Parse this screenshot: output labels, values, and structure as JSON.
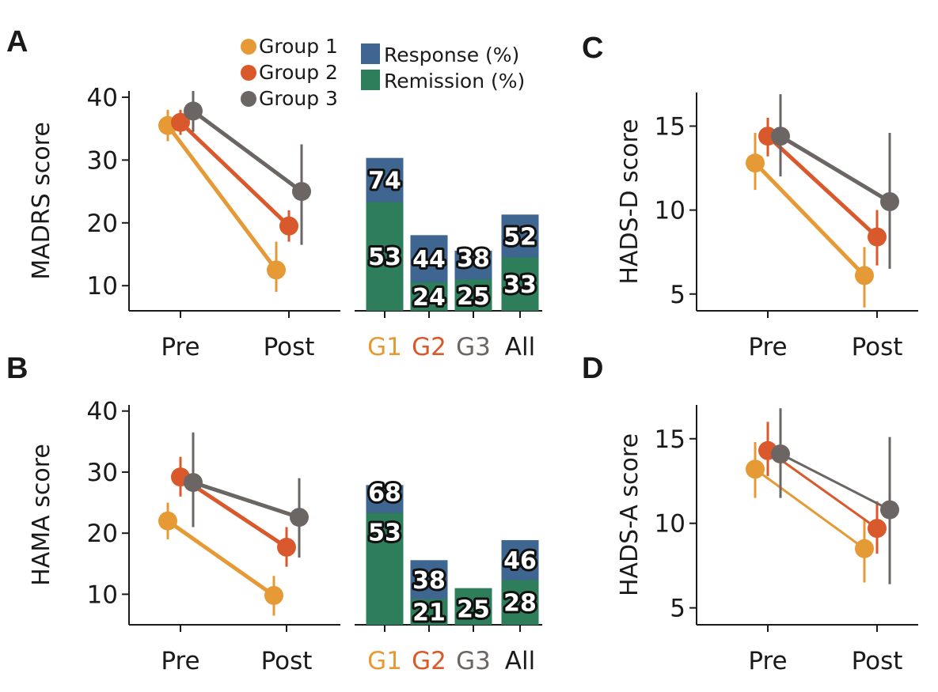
{
  "colors": {
    "g1": "#e69a35",
    "g2": "#d9592c",
    "g3": "#6b6563",
    "response": "#3e6690",
    "remission": "#2e7d5b",
    "axis": "#1a1a1a"
  },
  "legend": {
    "groups": [
      "Group 1",
      "Group 2",
      "Group 3"
    ],
    "bars": [
      "Response (%)",
      "Remission (%)"
    ]
  },
  "chart_data": [
    {
      "id": "A",
      "letter": "A",
      "type": "line",
      "ylabel": "MADRS score",
      "ylim": [
        6,
        41
      ],
      "yticks": [
        10,
        20,
        30,
        40
      ],
      "categories": [
        "Pre",
        "Post"
      ],
      "series": [
        {
          "name": "Group 1",
          "key": "g1",
          "values": [
            35.5,
            12.5
          ],
          "err": [
            [
              33,
              38
            ],
            [
              9,
              17
            ]
          ]
        },
        {
          "name": "Group 2",
          "key": "g2",
          "values": [
            36,
            19.5
          ],
          "err": [
            [
              34,
              38
            ],
            [
              17,
              22
            ]
          ]
        },
        {
          "name": "Group 3",
          "key": "g3",
          "values": [
            37.8,
            25
          ],
          "err": [
            [
              34.5,
              41
            ],
            [
              16.5,
              32.5
            ]
          ]
        }
      ],
      "bars": {
        "categories": [
          "G1",
          "G2",
          "G3",
          "All"
        ],
        "response": [
          74,
          44,
          38,
          52
        ],
        "remission": [
          53,
          24,
          25,
          33
        ]
      }
    },
    {
      "id": "B",
      "letter": "B",
      "type": "line",
      "ylabel": "HAMA score",
      "ylim": [
        5,
        41
      ],
      "yticks": [
        10,
        20,
        30,
        40
      ],
      "categories": [
        "Pre",
        "Post"
      ],
      "series": [
        {
          "name": "Group 1",
          "key": "g1",
          "values": [
            22,
            9.8
          ],
          "err": [
            [
              19,
              25
            ],
            [
              6.5,
              13
            ]
          ]
        },
        {
          "name": "Group 2",
          "key": "g2",
          "values": [
            29.2,
            17.7
          ],
          "err": [
            [
              26,
              32.5
            ],
            [
              14.5,
              21
            ]
          ]
        },
        {
          "name": "Group 3",
          "key": "g3",
          "values": [
            28.3,
            22.6
          ],
          "err": [
            [
              21,
              36.5
            ],
            [
              16,
              29
            ]
          ]
        }
      ],
      "bars": {
        "categories": [
          "G1",
          "G2",
          "G3",
          "All"
        ],
        "response": [
          68,
          38,
          25,
          46
        ],
        "remission": [
          53,
          21,
          25,
          28
        ]
      }
    },
    {
      "id": "C",
      "letter": "C",
      "type": "line",
      "ylabel": "HADS-D score",
      "ylim": [
        4,
        17
      ],
      "yticks": [
        5,
        10,
        15
      ],
      "categories": [
        "Pre",
        "Post"
      ],
      "series": [
        {
          "name": "Group 1",
          "key": "g1",
          "values": [
            12.8,
            6.1
          ],
          "err": [
            [
              11.2,
              14.6
            ],
            [
              4.2,
              7.8
            ]
          ]
        },
        {
          "name": "Group 2",
          "key": "g2",
          "values": [
            14.4,
            8.4
          ],
          "err": [
            [
              13.2,
              15.5
            ],
            [
              6.7,
              10
            ]
          ]
        },
        {
          "name": "Group 3",
          "key": "g3",
          "values": [
            14.4,
            10.5
          ],
          "err": [
            [
              12,
              16.9
            ],
            [
              6.5,
              14.6
            ]
          ]
        }
      ]
    },
    {
      "id": "D",
      "letter": "D",
      "type": "line",
      "ylabel": "HADS-A score",
      "ylim": [
        4,
        17
      ],
      "yticks": [
        5,
        10,
        15
      ],
      "categories": [
        "Pre",
        "Post"
      ],
      "series": [
        {
          "name": "Group 1",
          "key": "g1",
          "values": [
            13.2,
            8.5
          ],
          "err": [
            [
              11.5,
              14.8
            ],
            [
              6.5,
              10.3
            ]
          ]
        },
        {
          "name": "Group 2",
          "key": "g2",
          "values": [
            14.3,
            9.7
          ],
          "err": [
            [
              12.8,
              16
            ],
            [
              8.2,
              11.3
            ]
          ]
        },
        {
          "name": "Group 3",
          "key": "g3",
          "values": [
            14.1,
            10.8
          ],
          "err": [
            [
              11.5,
              16.8
            ],
            [
              6.4,
              15.1
            ]
          ]
        }
      ]
    }
  ]
}
